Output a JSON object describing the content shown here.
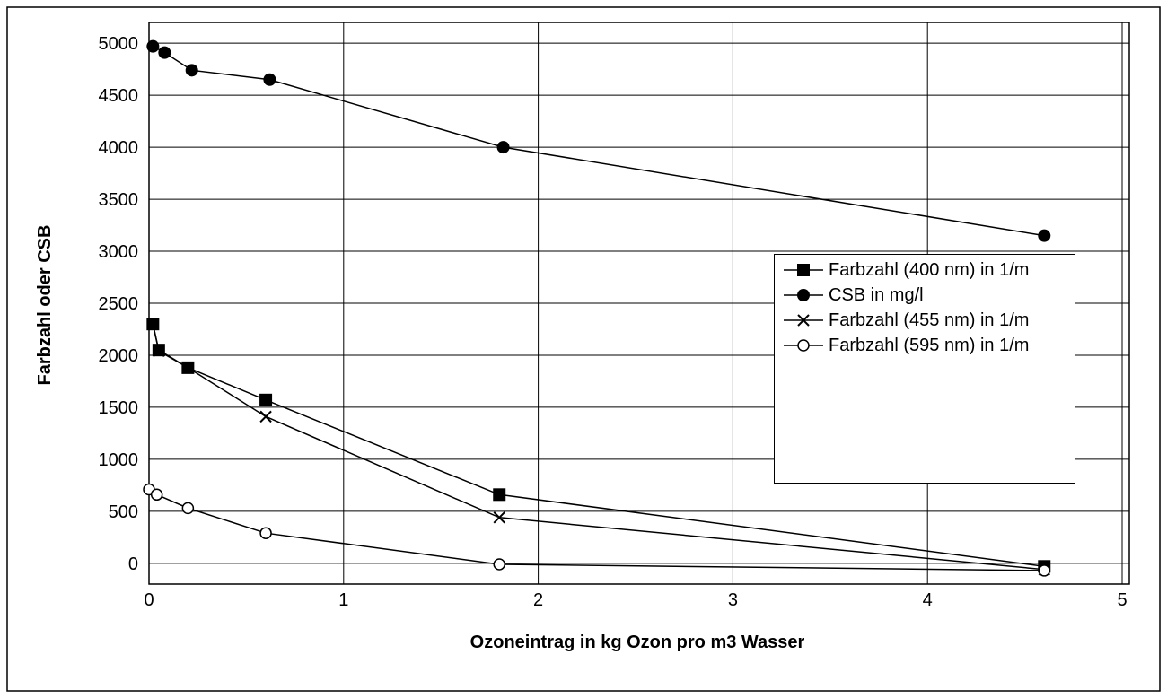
{
  "chart_data": {
    "type": "line",
    "xlabel": "Ozoneintrag in kg Ozon pro m3 Wasser",
    "ylabel": "Farbzahl oder CSB",
    "xlim": [
      0,
      5
    ],
    "xticks": [
      0,
      1,
      2,
      3,
      4,
      5
    ],
    "ylim": [
      -200,
      5200
    ],
    "yticks": [
      0,
      500,
      1000,
      1500,
      2000,
      2500,
      3000,
      3500,
      4000,
      4500,
      5000
    ],
    "grid": true,
    "legend": "right",
    "series": [
      {
        "name": "Farbzahl (400 nm) in 1/m",
        "color": "#000000",
        "marker": "square",
        "x": [
          0.02,
          0.05,
          0.2,
          0.6,
          1.8,
          4.6
        ],
        "values": [
          2300,
          2050,
          1880,
          1570,
          660,
          -30
        ]
      },
      {
        "name": "CSB in mg/l",
        "color": "#000000",
        "marker": "circle",
        "x": [
          0.02,
          0.08,
          0.22,
          0.62,
          1.82,
          4.6
        ],
        "values": [
          4970,
          4910,
          4740,
          4650,
          4000,
          3150
        ]
      },
      {
        "name": "Farbzahl (455 nm) in 1/m",
        "color": "#000000",
        "marker": "x",
        "x": [
          0.02,
          0.05,
          0.2,
          0.6,
          1.8,
          4.6
        ],
        "values": [
          2300,
          2040,
          1880,
          1410,
          440,
          -60
        ]
      },
      {
        "name": "Farbzahl (595 nm) in 1/m",
        "color": "#000000",
        "marker": "open-circle",
        "x": [
          0,
          0.04,
          0.2,
          0.6,
          1.8,
          4.6
        ],
        "values": [
          710,
          660,
          530,
          290,
          -10,
          -70
        ]
      }
    ]
  }
}
